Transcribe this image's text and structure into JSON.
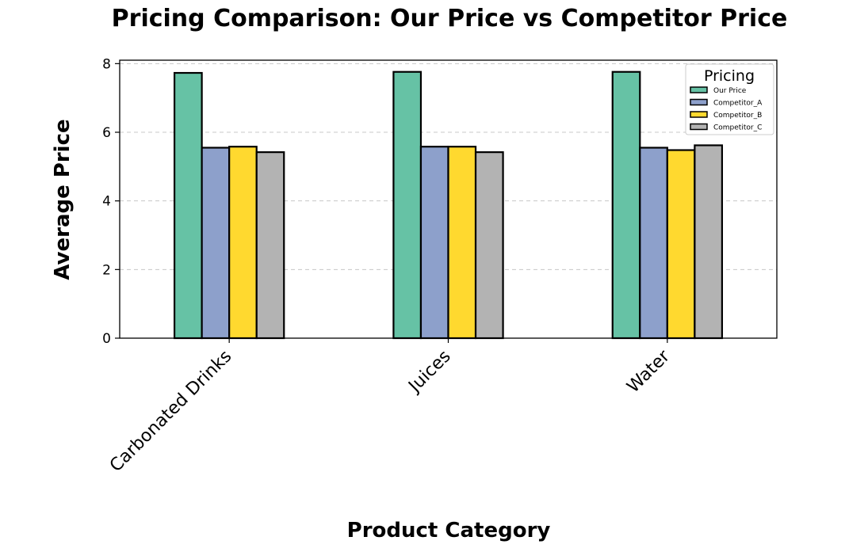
{
  "chart_data": {
    "type": "bar",
    "title": "Pricing Comparison: Our Price vs Competitor Price",
    "xlabel": "Product Category",
    "ylabel": "Average Price",
    "categories": [
      "Carbonated Drinks",
      "Juices",
      "Water"
    ],
    "series": [
      {
        "name": "Our Price",
        "color": "#66c2a5",
        "values": [
          7.73,
          7.76,
          7.76
        ]
      },
      {
        "name": "Competitor_A",
        "color": "#8da0cb",
        "values": [
          5.55,
          5.58,
          5.55
        ]
      },
      {
        "name": "Competitor_B",
        "color": "#ffd92f",
        "values": [
          5.58,
          5.58,
          5.48
        ]
      },
      {
        "name": "Competitor_C",
        "color": "#b3b3b3",
        "values": [
          5.42,
          5.42,
          5.62
        ]
      }
    ],
    "ylim": [
      0,
      8.1
    ],
    "yticks": [
      "0",
      "2",
      "4",
      "6",
      "8"
    ],
    "grid": "y-dashed",
    "legend": {
      "title": "Pricing",
      "placement": "top-right"
    }
  }
}
